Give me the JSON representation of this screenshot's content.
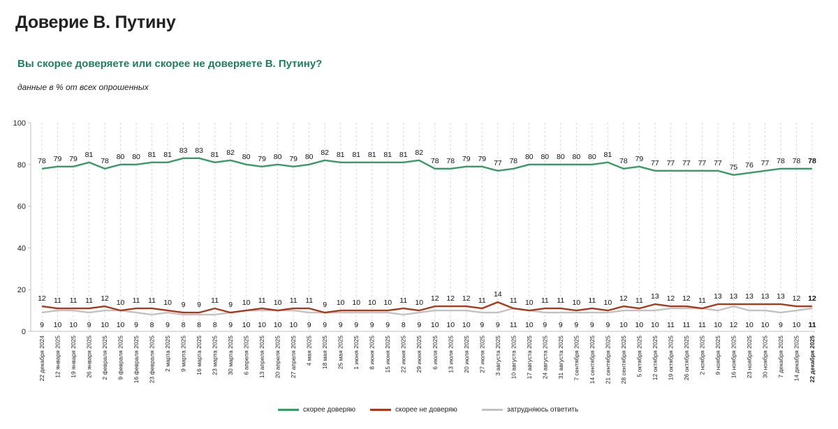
{
  "title": "Доверие В. Путину",
  "subtitle": "Вы скорее доверяете или скорее не доверяете В. Путину?",
  "note": "данные в % от всех опрошенных",
  "colors": {
    "trust": "#3a9a66",
    "distrust": "#a63a1e",
    "undecided": "#c2c2c2",
    "title": "#222222",
    "subtitle": "#1f7e5c"
  },
  "chart_data": {
    "type": "line",
    "title": "Доверие В. Путину",
    "ylim": [
      0,
      100
    ],
    "yticks": [
      0,
      20,
      40,
      60,
      80,
      100
    ],
    "grid": "vertical dashed",
    "legend": "bottom-center",
    "categories": [
      "22 декабря 2024",
      "12 января 2025",
      "19 января 2025",
      "26 января 2025",
      "2 февраля 2025",
      "9 февраля 2025",
      "16 февраля 2025",
      "23 февраля 2025",
      "2 марта 2025",
      "9 марта 2025",
      "16 марта 2025",
      "23 марта 2025",
      "30 марта 2025",
      "6 апреля 2025",
      "13 апреля 2025",
      "20 апреля 2025",
      "27 апреля 2025",
      "4 мая 2025",
      "18 мая 2025",
      "25 мая 2025",
      "1 июня 2025",
      "8 июня 2025",
      "15 июня 2025",
      "22 июня 2025",
      "29 июня 2025",
      "6 июля 2025",
      "13 июля 2025",
      "20 июля 2025",
      "27 июля 2025",
      "3 августа 2025",
      "10 августа 2025",
      "17 августа 2025",
      "24 августа 2025",
      "31 августа 2025",
      "7 сентября 2025",
      "14 сентября 2025",
      "21 сентября 2025",
      "28 сентября 2025",
      "5 октября 2025",
      "12 октября 2025",
      "19 октября 2025",
      "26 октября 2025",
      "2 ноября 2025",
      "9 ноября 2025",
      "16 ноября 2025",
      "23 ноября 2025",
      "30 ноября 2025",
      "7 декабря 2025",
      "14 декабря 2025",
      "22 декабря 2025"
    ],
    "series": [
      {
        "key": "trust",
        "name": "скорее доверяю",
        "values": [
          78,
          79,
          79,
          81,
          78,
          80,
          80,
          81,
          81,
          83,
          83,
          81,
          82,
          80,
          79,
          80,
          79,
          80,
          82,
          81,
          81,
          81,
          81,
          81,
          82,
          78,
          78,
          79,
          79,
          77,
          78,
          80,
          80,
          80,
          80,
          80,
          81,
          78,
          79,
          77,
          77,
          77,
          77,
          77,
          75,
          76,
          77,
          78,
          78,
          78
        ]
      },
      {
        "key": "distrust",
        "name": "скорее не доверяю",
        "values": [
          12,
          11,
          11,
          11,
          12,
          10,
          11,
          11,
          10,
          9,
          9,
          11,
          9,
          10,
          11,
          10,
          11,
          11,
          9,
          10,
          10,
          10,
          10,
          11,
          10,
          12,
          12,
          12,
          11,
          14,
          11,
          10,
          11,
          11,
          10,
          11,
          10,
          12,
          11,
          13,
          12,
          12,
          11,
          13,
          13,
          13,
          13,
          13,
          12,
          12
        ]
      },
      {
        "key": "undecided",
        "name": "затрудняюсь ответить",
        "values": [
          9,
          10,
          10,
          9,
          10,
          10,
          9,
          8,
          9,
          8,
          8,
          8,
          9,
          10,
          10,
          10,
          10,
          9,
          9,
          9,
          9,
          9,
          9,
          8,
          9,
          10,
          10,
          10,
          9,
          9,
          11,
          10,
          9,
          9,
          9,
          9,
          9,
          10,
          10,
          10,
          11,
          11,
          11,
          10,
          12,
          10,
          10,
          9,
          10,
          11
        ]
      }
    ]
  }
}
